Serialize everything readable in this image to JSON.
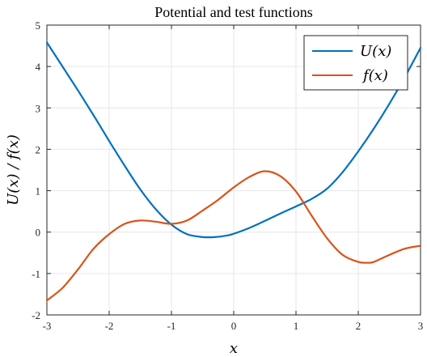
{
  "chart_data": {
    "type": "line",
    "title": "Potential and test functions",
    "xlabel": "x",
    "ylabel": "U(x) / f(x)",
    "xlim": [
      -3,
      3
    ],
    "ylim": [
      -2,
      5
    ],
    "xticks": [
      -3,
      -2,
      -1,
      0,
      1,
      2,
      3
    ],
    "yticks": [
      -2,
      -1,
      0,
      1,
      2,
      3,
      4,
      5
    ],
    "xtick_labels": [
      "-3",
      "-2",
      "-1",
      "0",
      "1",
      "2",
      "3"
    ],
    "ytick_labels": [
      "-2",
      "-1",
      "0",
      "1",
      "2",
      "3",
      "4",
      "5"
    ],
    "grid": true,
    "legend_position": "top-right",
    "series": [
      {
        "name": "U(x)",
        "color": "#0072BD",
        "x": [
          -3.0,
          -2.75,
          -2.5,
          -2.25,
          -2.0,
          -1.75,
          -1.5,
          -1.25,
          -1.0,
          -0.75,
          -0.5,
          -0.3,
          -0.1,
          0.0,
          0.25,
          0.5,
          0.75,
          1.0,
          1.25,
          1.5,
          1.75,
          2.0,
          2.25,
          2.5,
          2.75,
          3.0
        ],
        "y": [
          4.58,
          4.0,
          3.42,
          2.82,
          2.2,
          1.6,
          1.03,
          0.55,
          0.18,
          -0.05,
          -0.12,
          -0.12,
          -0.08,
          -0.04,
          0.1,
          0.27,
          0.45,
          0.62,
          0.8,
          1.05,
          1.45,
          1.95,
          2.5,
          3.1,
          3.75,
          4.45
        ]
      },
      {
        "name": "f(x)",
        "color": "#D95319",
        "x": [
          -3.0,
          -2.75,
          -2.5,
          -2.25,
          -2.0,
          -1.75,
          -1.5,
          -1.25,
          -1.0,
          -0.75,
          -0.5,
          -0.25,
          0.0,
          0.25,
          0.5,
          0.75,
          1.0,
          1.25,
          1.5,
          1.75,
          2.0,
          2.15,
          2.25,
          2.5,
          2.75,
          3.0
        ],
        "y": [
          -1.65,
          -1.35,
          -0.9,
          -0.4,
          -0.05,
          0.2,
          0.28,
          0.25,
          0.2,
          0.28,
          0.52,
          0.78,
          1.08,
          1.33,
          1.47,
          1.35,
          0.98,
          0.4,
          -0.15,
          -0.55,
          -0.72,
          -0.74,
          -0.72,
          -0.55,
          -0.4,
          -0.33
        ]
      }
    ]
  }
}
